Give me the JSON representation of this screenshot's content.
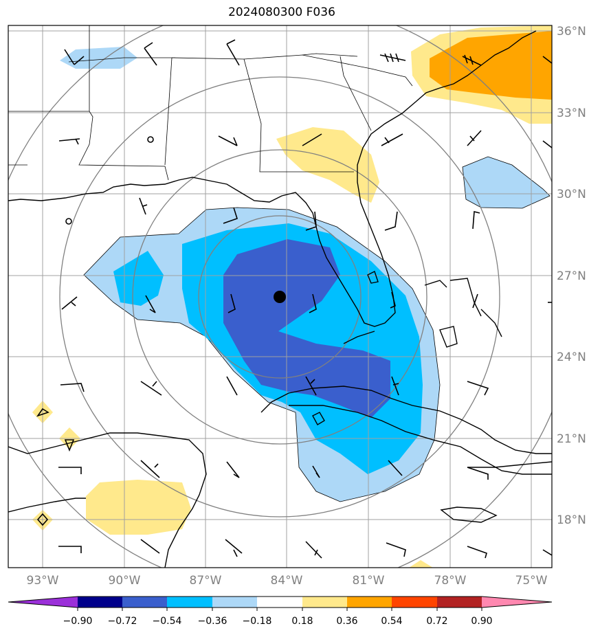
{
  "title": "2024080300 F036",
  "lon_labels": [
    "93°W",
    "90°W",
    "87°W",
    "84°W",
    "81°W",
    "78°W",
    "75°W"
  ],
  "lat_labels": [
    "36°N",
    "33°N",
    "30°N",
    "27°N",
    "24°N",
    "21°N",
    "18°N"
  ],
  "extent": {
    "lon_min": -94.3,
    "lon_max": -74.3,
    "lat_min": 16.3,
    "lat_max": 36.2
  },
  "storm_center": {
    "lon": -84.2,
    "lat": 26.2
  },
  "colorbar": {
    "tick_labels": [
      "−0.90",
      "−0.72",
      "−0.54",
      "−0.36",
      "−0.18",
      "0.18",
      "0.36",
      "0.54",
      "0.72",
      "0.90"
    ],
    "colors": [
      "#9b30d9",
      "#00008b",
      "#3a5fcd",
      "#00bfff",
      "#add8f7",
      "#ffffff",
      "#ffe98c",
      "#ffa500",
      "#ff4500",
      "#b22222",
      "#ff88b0"
    ]
  },
  "colors": {
    "light_blue": "#add8f7",
    "medium_blue": "#00bfff",
    "dark_blue": "#3a5fcd",
    "light_yellow": "#ffe98c",
    "orange": "#ffa500",
    "grid": "#a0a0a0",
    "ring": "#808080"
  }
}
